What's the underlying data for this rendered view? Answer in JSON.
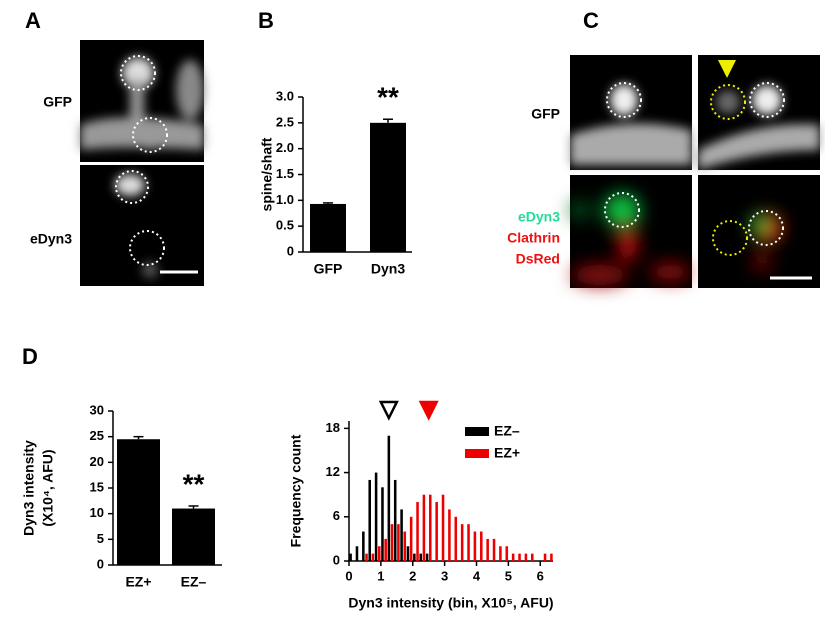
{
  "panel_labels": [
    "A",
    "B",
    "C",
    "D"
  ],
  "image_labels": {
    "A": [
      "GFP",
      "eDyn3"
    ],
    "C": [
      "GFP",
      "eDyn3",
      "Clathrin",
      "DsRed"
    ]
  },
  "chart_data": [
    {
      "type": "bar",
      "categories": [
        "GFP",
        "Dyn3"
      ],
      "values": [
        0.93,
        2.5
      ],
      "errors": [
        0.02,
        0.07
      ],
      "color": "#000000",
      "ylabel": [
        "spine/shaft"
      ],
      "annotation": "**",
      "ylim": [
        0,
        3
      ],
      "yticks": [
        0,
        0.5,
        {
          "value": 1,
          "label": "1.0"
        },
        1.5,
        {
          "value": 2,
          "label": "2.0"
        },
        2.5,
        {
          "value": 3,
          "label": "3.0"
        }
      ]
    },
    {
      "type": "bar",
      "categories": [
        "EZ+",
        "EZ–"
      ],
      "values": [
        24.5,
        11
      ],
      "errors": [
        0.5,
        0.5
      ],
      "color": "#000000",
      "ylabel": [
        "Dyn3 intensity",
        "(X10⁴, AFU)"
      ],
      "annotation": "**",
      "ylim": [
        0,
        30
      ],
      "yticks": [
        0,
        5,
        10,
        15,
        20,
        25,
        30
      ]
    },
    {
      "type": "histogram",
      "xlabel": "Dyn3 intensity (bin, X10⁵, AFU)",
      "ylabel": "Frequency count",
      "bins": [
        0,
        0.2,
        0.4,
        0.6,
        0.8,
        1,
        1.2,
        1.4,
        1.6,
        1.8,
        2,
        2.2,
        2.4,
        2.6,
        2.8,
        3,
        3.2,
        3.4,
        3.6,
        3.8,
        4,
        4.2,
        4.4,
        4.6,
        4.8,
        5,
        5.2,
        5.4,
        5.6,
        5.8,
        6,
        6.2,
        6.4
      ],
      "series": [
        {
          "name": "EZ–",
          "color": "#000000",
          "values": [
            1,
            2,
            4,
            11,
            12,
            10,
            17,
            11,
            7,
            2,
            1,
            1,
            1,
            0,
            0,
            0,
            0,
            0,
            0,
            0,
            0,
            0,
            0,
            0,
            0,
            0,
            0,
            0,
            0,
            0,
            0,
            0
          ]
        },
        {
          "name": "EZ+",
          "color": "#ee0000",
          "values": [
            0,
            0,
            1,
            1,
            2,
            3,
            5,
            5,
            4,
            6,
            8,
            9,
            9,
            8,
            9,
            7,
            6,
            5,
            5,
            4,
            4,
            3,
            3,
            2,
            2,
            1,
            1,
            1,
            1,
            0,
            1,
            1
          ]
        }
      ],
      "markers": [
        {
          "x": 1.25,
          "color": "#000000",
          "filled": false
        },
        {
          "x": 2.5,
          "color": "#ee0000",
          "filled": true
        }
      ],
      "xlim": [
        0,
        6.4
      ],
      "xticks": [
        0,
        1,
        2,
        3,
        4,
        5,
        6
      ],
      "ylim": [
        0,
        19
      ],
      "yticks": [
        0,
        6,
        12,
        18
      ]
    }
  ]
}
